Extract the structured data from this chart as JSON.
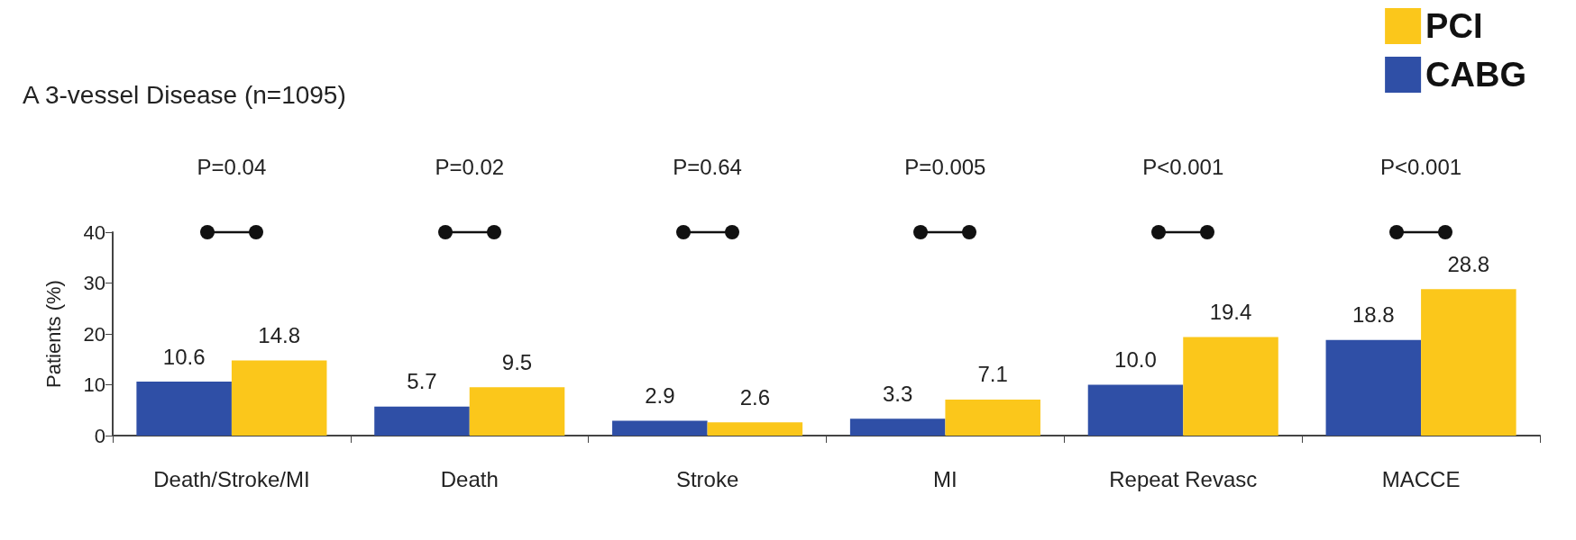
{
  "chart_data": {
    "type": "bar",
    "title": "A 3-vessel Disease (n=1095)",
    "ylabel": "Patients (%)",
    "categories": [
      "Death/Stroke/MI",
      "Death",
      "Stroke",
      "MI",
      "Repeat Revasc",
      "MACCE"
    ],
    "series": [
      {
        "name": "CABG",
        "color": "#2f4fa6",
        "values": [
          10.6,
          5.7,
          2.9,
          3.3,
          10.0,
          18.8
        ],
        "value_labels": [
          "10.6",
          "5.7",
          "2.9",
          "3.3",
          "10.0",
          "18.8"
        ]
      },
      {
        "name": "PCI",
        "color": "#fbc71b",
        "values": [
          14.8,
          9.5,
          2.6,
          7.1,
          19.4,
          28.8
        ],
        "value_labels": [
          "14.8",
          "9.5",
          "2.6",
          "7.1",
          "19.4",
          "28.8"
        ]
      }
    ],
    "ylim": [
      0,
      40
    ],
    "yticks": [
      0,
      10,
      20,
      30,
      40
    ],
    "legend": "top right",
    "annotations": [
      "P=0.04",
      "P=0.02",
      "P=0.64",
      "P=0.005",
      "P<0.001",
      "P<0.001"
    ]
  }
}
